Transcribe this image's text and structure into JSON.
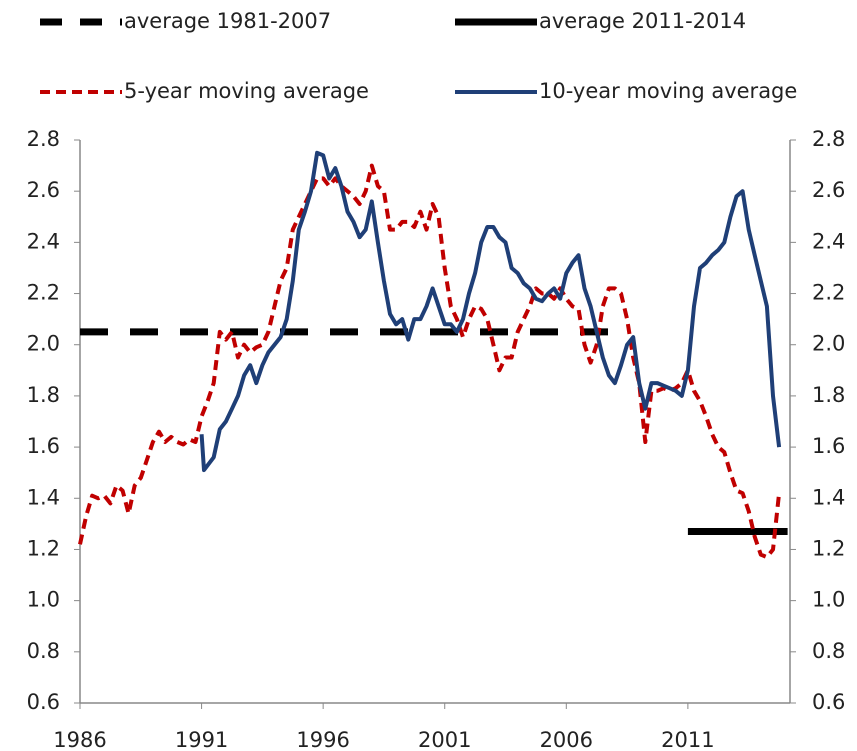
{
  "chart_data": {
    "type": "line",
    "legend": "top",
    "xlim": [
      1986,
      2015.2
    ],
    "xticks": [
      1986,
      1991,
      1996,
      2001,
      2006,
      2011
    ],
    "ylim": [
      0.6,
      2.8
    ],
    "yticks": [
      0.6,
      0.8,
      {
        "value": 1.0,
        "label": "1.0"
      },
      1.2,
      1.4,
      1.6,
      1.8,
      {
        "value": 2.0,
        "label": "2.0"
      },
      2.2,
      2.4,
      2.6,
      2.8
    ],
    "y2lim": [
      0.6,
      2.8
    ],
    "y2ticks": [
      0.6,
      0.8,
      {
        "value": 1.0,
        "label": "1.0"
      },
      1.2,
      1.4,
      1.6,
      1.8,
      {
        "value": 2.0,
        "label": "2.0"
      },
      2.2,
      2.4,
      2.6,
      2.8
    ],
    "series": [
      {
        "name": "average 1981-2007",
        "color": "#000000",
        "dashed": true,
        "line_width": 7,
        "x": [
          1986,
          2008.2
        ],
        "values": [
          2.05,
          2.05
        ]
      },
      {
        "name": "average 2011-2014",
        "color": "#000000",
        "dashed": false,
        "line_width": 7,
        "x": [
          2011,
          2015.1
        ],
        "values": [
          1.27,
          1.27
        ]
      },
      {
        "name": "5-year moving average",
        "color": "#c00000",
        "dashed": true,
        "line_width": 4,
        "x": [
          1986,
          1986.25,
          1986.5,
          1986.75,
          1987,
          1987.25,
          1987.5,
          1987.75,
          1988,
          1988.25,
          1988.5,
          1988.75,
          1989,
          1989.25,
          1989.5,
          1989.75,
          1990,
          1990.25,
          1990.5,
          1990.75,
          1991,
          1991.25,
          1991.5,
          1991.75,
          1992,
          1992.25,
          1992.5,
          1992.75,
          1993,
          1993.25,
          1993.5,
          1993.75,
          1994,
          1994.25,
          1994.5,
          1994.75,
          1995,
          1995.25,
          1995.5,
          1995.75,
          1996,
          1996.25,
          1996.5,
          1996.75,
          1997,
          1997.25,
          1997.5,
          1997.75,
          1998,
          1998.25,
          1998.5,
          1998.75,
          1999,
          1999.25,
          1999.5,
          1999.75,
          2000,
          2000.25,
          2000.5,
          2000.75,
          2001,
          2001.25,
          2001.5,
          2001.75,
          2002,
          2002.25,
          2002.5,
          2002.75,
          2003,
          2003.25,
          2003.5,
          2003.75,
          2004,
          2004.25,
          2004.5,
          2004.75,
          2005,
          2005.25,
          2005.5,
          2005.75,
          2006,
          2006.25,
          2006.5,
          2006.75,
          2007,
          2007.25,
          2007.5,
          2007.75,
          2008,
          2008.25,
          2008.5,
          2008.75,
          2009,
          2009.25,
          2009.5,
          2009.75,
          2010,
          2010.25,
          2010.5,
          2010.75,
          2011,
          2011.25,
          2011.5,
          2011.75,
          2012,
          2012.25,
          2012.5,
          2012.75,
          2013,
          2013.25,
          2013.5,
          2013.75,
          2014,
          2014.25,
          2014.5,
          2014.75
        ],
        "values": [
          1.22,
          1.33,
          1.41,
          1.4,
          1.41,
          1.38,
          1.45,
          1.43,
          1.34,
          1.45,
          1.48,
          1.55,
          1.62,
          1.66,
          1.62,
          1.64,
          1.62,
          1.61,
          1.63,
          1.62,
          1.72,
          1.78,
          1.85,
          2.05,
          2.02,
          2.05,
          1.95,
          2.0,
          1.97,
          1.99,
          2.0,
          2.05,
          2.15,
          2.25,
          2.3,
          2.45,
          2.5,
          2.55,
          2.6,
          2.65,
          2.65,
          2.62,
          2.65,
          2.62,
          2.6,
          2.58,
          2.55,
          2.6,
          2.7,
          2.62,
          2.6,
          2.45,
          2.45,
          2.48,
          2.48,
          2.46,
          2.52,
          2.45,
          2.55,
          2.5,
          2.3,
          2.15,
          2.1,
          2.03,
          2.1,
          2.15,
          2.14,
          2.1,
          2.0,
          1.9,
          1.95,
          1.95,
          2.05,
          2.1,
          2.15,
          2.22,
          2.2,
          2.2,
          2.18,
          2.22,
          2.18,
          2.15,
          2.14,
          2.0,
          1.93,
          2.0,
          2.15,
          2.22,
          2.22,
          2.2,
          2.1,
          1.95,
          1.85,
          1.62,
          1.82,
          1.82,
          1.83,
          1.82,
          1.83,
          1.85,
          1.9,
          1.82,
          1.78,
          1.72,
          1.65,
          1.6,
          1.58,
          1.5,
          1.43,
          1.42,
          1.35,
          1.25,
          1.18,
          1.17,
          1.2,
          1.42
        ]
      },
      {
        "name": "10-year moving average",
        "color": "#1f3f77",
        "dashed": false,
        "line_width": 4,
        "x": [
          1991,
          1991.1,
          1991.5,
          1991.75,
          1992,
          1992.25,
          1992.5,
          1992.75,
          1993,
          1993.25,
          1993.5,
          1993.75,
          1994,
          1994.25,
          1994.5,
          1994.75,
          1995,
          1995.25,
          1995.5,
          1995.75,
          1996,
          1996.25,
          1996.5,
          1996.75,
          1997,
          1997.25,
          1997.5,
          1997.75,
          1998,
          1998.25,
          1998.5,
          1998.75,
          1999,
          1999.25,
          1999.5,
          1999.75,
          2000,
          2000.25,
          2000.5,
          2000.75,
          2001,
          2001.25,
          2001.5,
          2001.75,
          2002,
          2002.25,
          2002.5,
          2002.75,
          2003,
          2003.25,
          2003.5,
          2003.75,
          2004,
          2004.25,
          2004.5,
          2004.75,
          2005,
          2005.25,
          2005.5,
          2005.75,
          2006,
          2006.25,
          2006.5,
          2006.75,
          2007,
          2007.25,
          2007.5,
          2007.75,
          2008,
          2008.25,
          2008.5,
          2008.75,
          2009,
          2009.25,
          2009.5,
          2009.75,
          2010,
          2010.25,
          2010.5,
          2010.75,
          2011,
          2011.25,
          2011.5,
          2011.75,
          2012,
          2012.25,
          2012.5,
          2012.75,
          2013,
          2013.25,
          2013.5,
          2013.75,
          2014,
          2014.25,
          2014.5,
          2014.75
        ],
        "values": [
          1.65,
          1.51,
          1.56,
          1.67,
          1.7,
          1.75,
          1.8,
          1.88,
          1.92,
          1.85,
          1.92,
          1.97,
          2.0,
          2.03,
          2.1,
          2.25,
          2.45,
          2.52,
          2.6,
          2.75,
          2.74,
          2.65,
          2.69,
          2.62,
          2.52,
          2.48,
          2.42,
          2.45,
          2.56,
          2.4,
          2.25,
          2.12,
          2.08,
          2.1,
          2.02,
          2.1,
          2.1,
          2.15,
          2.22,
          2.15,
          2.08,
          2.08,
          2.05,
          2.1,
          2.2,
          2.28,
          2.4,
          2.46,
          2.46,
          2.42,
          2.4,
          2.3,
          2.28,
          2.24,
          2.22,
          2.18,
          2.17,
          2.2,
          2.22,
          2.18,
          2.28,
          2.32,
          2.35,
          2.22,
          2.15,
          2.05,
          1.95,
          1.88,
          1.85,
          1.92,
          2.0,
          2.03,
          1.85,
          1.75,
          1.85,
          1.85,
          1.84,
          1.83,
          1.82,
          1.8,
          1.9,
          2.15,
          2.3,
          2.32,
          2.35,
          2.37,
          2.4,
          2.5,
          2.58,
          2.6,
          2.45,
          2.35,
          2.25,
          2.15,
          1.8,
          1.6
        ]
      }
    ]
  }
}
